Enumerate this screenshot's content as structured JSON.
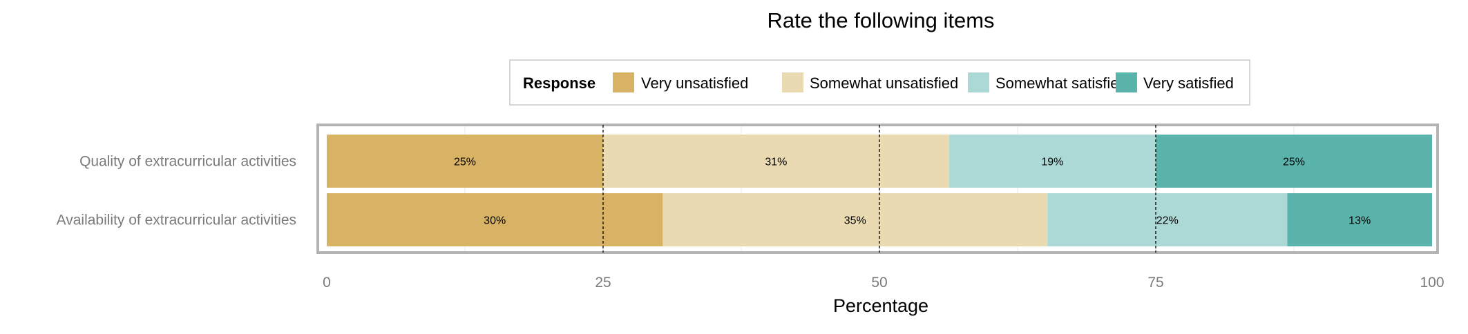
{
  "chart_data": {
    "type": "bar",
    "orientation": "horizontal",
    "stacked": true,
    "title": "Rate the following items",
    "xlabel": "Percentage",
    "ylabel": "",
    "xlim": [
      0,
      100
    ],
    "xticks": [
      0,
      25,
      50,
      75,
      100
    ],
    "reference_lines": [
      25,
      50,
      75
    ],
    "legend": {
      "title": "Response",
      "placement": "top"
    },
    "categories": [
      "Quality of extracurricular activities",
      "Availability of extracurricular activities"
    ],
    "series": [
      {
        "name": "Very unsatisfied",
        "color": "#d8b365",
        "values": [
          25,
          30.4
        ],
        "labels": [
          "25%",
          "30%"
        ]
      },
      {
        "name": "Somewhat unsatisfied",
        "color": "#eadab1",
        "values": [
          31.3,
          34.8
        ],
        "labels": [
          "31%",
          "35%"
        ]
      },
      {
        "name": "Somewhat satisfied",
        "color": "#acd9d5",
        "values": [
          18.7,
          21.7
        ],
        "labels": [
          "19%",
          "22%"
        ]
      },
      {
        "name": "Very satisfied",
        "color": "#5ab4ac",
        "values": [
          25,
          13.1
        ],
        "labels": [
          "25%",
          "13%"
        ]
      }
    ]
  }
}
